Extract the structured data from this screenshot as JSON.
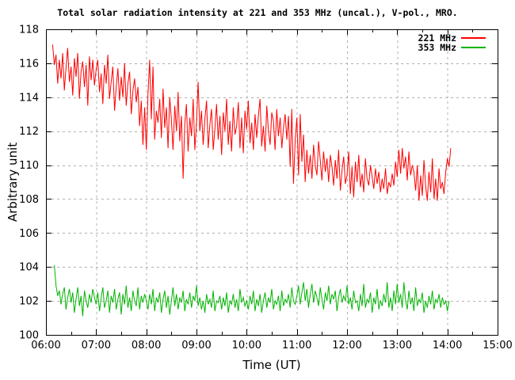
{
  "chart_data": {
    "type": "line",
    "title": "Total solar radiation intensity at 221 and 353 MHz (uncal.), V-pol., MRO.",
    "xlabel": "Time (UT)",
    "ylabel": "Arbitrary unit",
    "x_axis": {
      "start_hour": 6,
      "end_hour": 15,
      "tick_labels": [
        "06:00",
        "07:00",
        "08:00",
        "09:00",
        "10:00",
        "11:00",
        "12:00",
        "13:00",
        "14:00",
        "15:00"
      ],
      "minor_tick_every_minutes": 30
    },
    "y_axis": {
      "min": 100,
      "max": 118,
      "tick_step": 2,
      "tick_labels": [
        "100",
        "102",
        "104",
        "106",
        "108",
        "110",
        "112",
        "114",
        "116",
        "118"
      ]
    },
    "grid": {
      "show": true,
      "color": "#b0b0b0",
      "dash": "3,4"
    },
    "legend_position": "top-right-inside",
    "legend": [
      {
        "label": "221 MHz",
        "color": "#ff0000"
      },
      {
        "label": "353 MHz",
        "color": "#00b400"
      }
    ],
    "series": [
      {
        "name": "221 MHz",
        "color": "#ff0000",
        "start_minute_ut": 368,
        "step_minutes": 2,
        "values": [
          117.1,
          115.9,
          116.5,
          114.8,
          116.2,
          115.1,
          116.6,
          114.4,
          115.7,
          116.9,
          114.9,
          115.8,
          114.1,
          116.3,
          115.2,
          116.6,
          113.9,
          115.5,
          116.1,
          114.6,
          115.9,
          113.5,
          116.4,
          115.0,
          116.2,
          114.7,
          115.6,
          116.2,
          114.3,
          115.4,
          113.6,
          115.9,
          114.8,
          116.5,
          113.9,
          114.9,
          115.8,
          113.2,
          114.6,
          115.7,
          113.8,
          115.2,
          114.0,
          116.0,
          113.5,
          114.8,
          115.5,
          113.0,
          114.4,
          115.1,
          113.7,
          114.6,
          112.3,
          113.8,
          111.2,
          113.4,
          110.9,
          114.2,
          116.2,
          112.7,
          115.8,
          111.5,
          113.2,
          112.5,
          113.9,
          111.6,
          114.5,
          112.2,
          113.4,
          111.0,
          114.0,
          112.7,
          110.9,
          113.5,
          112.0,
          114.3,
          111.4,
          112.9,
          109.2,
          112.4,
          113.6,
          110.8,
          112.8,
          111.7,
          113.9,
          110.9,
          112.5,
          114.9,
          112.0,
          113.2,
          111.2,
          112.7,
          113.8,
          111.0,
          112.4,
          113.3,
          110.9,
          112.1,
          113.6,
          111.5,
          112.9,
          110.6,
          113.1,
          112.0,
          113.9,
          111.2,
          112.6,
          110.8,
          113.4,
          111.8,
          112.3,
          113.7,
          111.0,
          112.8,
          110.7,
          113.2,
          112.1,
          113.8,
          111.3,
          112.5,
          110.9,
          113.0,
          111.6,
          112.9,
          113.9,
          111.1,
          112.3,
          110.8,
          113.5,
          112.0,
          111.2,
          113.1,
          112.6,
          110.9,
          113.3,
          111.7,
          112.8,
          111.0,
          112.2,
          113.0,
          111.5,
          112.9,
          109.9,
          113.3,
          108.9,
          111.5,
          112.8,
          109.4,
          113.0,
          110.2,
          111.8,
          109.0,
          110.9,
          109.5,
          110.6,
          109.2,
          111.2,
          110.0,
          109.4,
          111.4,
          110.3,
          109.1,
          110.8,
          109.6,
          110.4,
          109.0,
          110.6,
          109.9,
          108.8,
          110.3,
          109.2,
          110.9,
          108.5,
          109.7,
          110.5,
          108.9,
          109.4,
          110.8,
          108.3,
          109.9,
          108.1,
          110.2,
          109.0,
          110.6,
          108.7,
          109.5,
          108.4,
          110.4,
          109.2,
          108.8,
          110.0,
          109.3,
          108.6,
          109.8,
          108.9,
          109.6,
          108.4,
          109.2,
          108.6,
          109.8,
          108.3,
          109.0,
          108.7,
          109.5,
          108.8,
          110.2,
          109.3,
          110.9,
          109.5,
          111.0,
          109.8,
          110.5,
          109.1,
          110.8,
          109.4,
          110.0,
          109.6,
          108.5,
          110.0,
          107.9,
          109.4,
          108.2,
          110.3,
          108.8,
          107.9,
          109.6,
          108.4,
          110.4,
          108.0,
          109.2,
          107.9,
          109.8,
          108.6,
          109.0,
          108.3,
          109.6,
          110.4,
          109.9,
          111.0
        ]
      },
      {
        "name": "353 MHz",
        "color": "#00b400",
        "start_minute_ut": 370,
        "step_minutes": 2,
        "values": [
          104.1,
          102.9,
          102.3,
          102.6,
          101.8,
          102.4,
          102.8,
          101.5,
          102.2,
          102.7,
          101.9,
          102.5,
          101.3,
          102.1,
          102.8,
          101.7,
          102.3,
          101.1,
          102.6,
          102.0,
          101.6,
          102.4,
          101.9,
          102.7,
          102.2,
          101.8,
          102.5,
          101.4,
          102.2,
          102.8,
          101.6,
          102.0,
          102.6,
          101.3,
          102.3,
          101.9,
          102.7,
          101.5,
          102.1,
          102.5,
          101.2,
          102.4,
          101.8,
          102.9,
          101.6,
          102.2,
          101.4,
          102.6,
          102.0,
          101.7,
          102.8,
          101.5,
          102.3,
          101.9,
          102.4,
          102.0,
          101.5,
          102.4,
          101.8,
          102.7,
          101.4,
          102.2,
          101.9,
          102.5,
          101.3,
          102.1,
          102.6,
          101.6,
          102.3,
          101.2,
          102.0,
          102.8,
          101.7,
          102.4,
          101.5,
          102.2,
          101.9,
          102.6,
          101.4,
          102.1,
          101.8,
          102.5,
          101.6,
          102.3,
          102.0,
          102.9,
          101.7,
          102.2,
          101.5,
          102.0,
          101.3,
          102.4,
          101.8,
          102.1,
          101.6,
          102.6,
          101.4,
          102.0,
          101.9,
          102.3,
          101.5,
          102.2,
          101.7,
          102.5,
          101.3,
          102.0,
          101.8,
          102.4,
          101.6,
          102.1,
          101.4,
          102.7,
          101.9,
          102.2,
          101.7,
          102.0,
          101.5,
          102.3,
          101.8,
          102.6,
          101.4,
          102.1,
          101.7,
          102.4,
          101.3,
          102.0,
          102.5,
          101.6,
          102.2,
          101.9,
          102.7,
          101.5,
          102.0,
          101.8,
          102.3,
          101.4,
          102.6,
          101.7,
          102.1,
          101.9,
          102.4,
          101.6,
          102.8,
          102.0,
          101.8,
          102.3,
          102.9,
          101.8,
          102.5,
          103.1,
          102.0,
          102.7,
          101.6,
          102.4,
          103.0,
          101.9,
          102.6,
          102.2,
          101.7,
          102.8,
          102.1,
          101.5,
          102.5,
          102.0,
          102.9,
          101.8,
          102.4,
          102.1,
          102.6,
          101.4,
          102.2,
          102.7,
          101.9,
          102.3,
          102.0,
          102.9,
          101.8,
          102.2,
          101.5,
          102.6,
          101.9,
          102.0,
          101.4,
          102.4,
          101.7,
          103.0,
          101.6,
          102.1,
          101.9,
          102.5,
          101.3,
          102.2,
          101.8,
          102.7,
          101.5,
          102.0,
          101.7,
          102.4,
          101.9,
          103.1,
          101.6,
          102.2,
          101.4,
          102.6,
          101.8,
          103.0,
          101.9,
          102.4,
          101.6,
          103.1,
          102.0,
          101.5,
          102.6,
          101.8,
          102.2,
          101.4,
          102.8,
          101.7,
          102.1,
          101.9,
          102.5,
          101.3,
          102.0,
          101.6,
          102.3,
          101.8,
          102.6,
          101.5,
          102.1,
          101.9,
          102.4,
          101.6,
          102.2,
          101.8,
          102.0,
          101.4,
          102.0
        ]
      }
    ]
  }
}
